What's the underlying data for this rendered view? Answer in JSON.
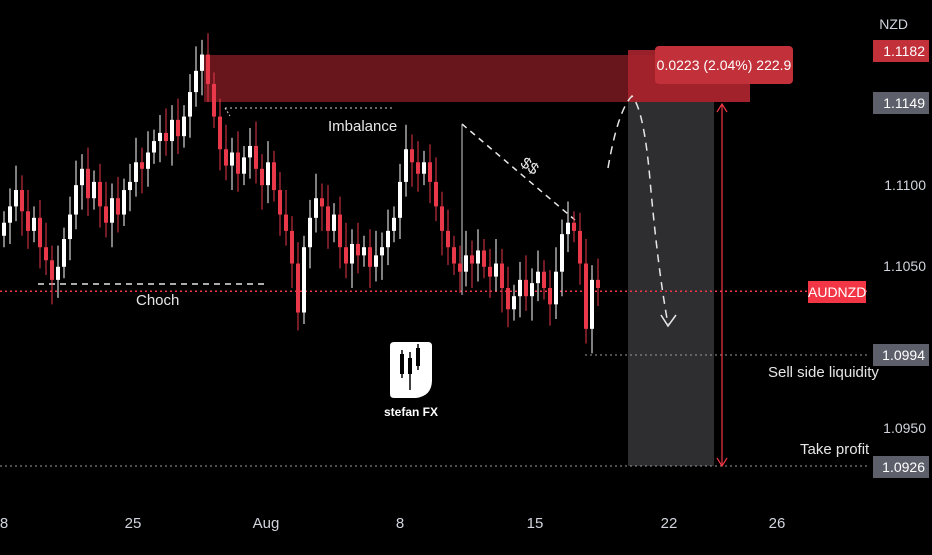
{
  "chart_data": {
    "type": "candlestick",
    "symbol": "AUDNZD",
    "currency": "NZD",
    "x_ticks": [
      "8",
      "25",
      "Aug",
      "8",
      "15",
      "22",
      "26"
    ],
    "y_ticks": [
      1.11,
      1.105,
      1.095
    ],
    "y_tick_labels": [
      "1.1100",
      "1.1050",
      "1.0950"
    ],
    "ylim": [
      1.09,
      1.12
    ],
    "current_price": 1.1033,
    "marked_levels": [
      {
        "value": 1.1182,
        "label": "1.1182",
        "color": "#c2303a"
      },
      {
        "value": 1.1149,
        "label": "1.1149",
        "color": "#5d606b"
      },
      {
        "value": 1.0994,
        "label": "1.0994",
        "color": "#5d606b"
      },
      {
        "value": 1.0926,
        "label": "1.0926",
        "color": "#5d606b"
      }
    ],
    "price_tag": "AUDNZD",
    "measure_label": "0.0223 (2.04%) 222.9",
    "annotations": {
      "imbalance": "Imbalance",
      "choch": "Choch",
      "sell_side_liquidity": "Sell side liquidity",
      "take_profit": "Take profit",
      "dollar_mark": "$$"
    },
    "watermark": "stefan FX",
    "colors": {
      "up": "#ffffff",
      "down": "#e8384a",
      "zone": "#7a1a20",
      "accent": "#f23645"
    }
  }
}
